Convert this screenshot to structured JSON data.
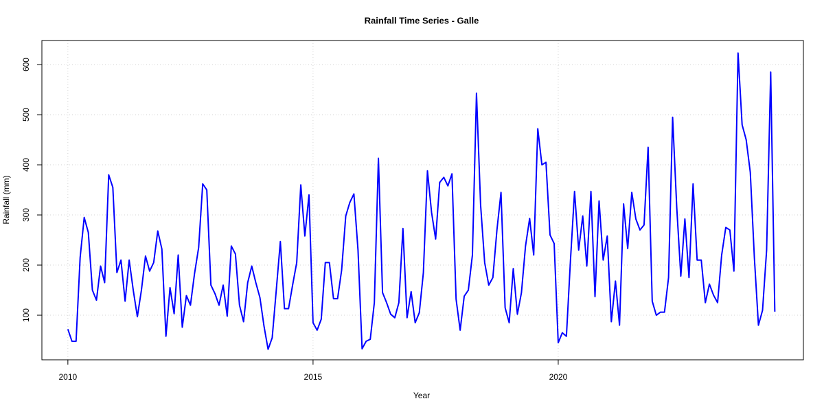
{
  "chart_data": {
    "type": "line",
    "title": "Rainfall Time Series - Galle",
    "x_label": "Year",
    "y_label": "Rainfall (mm)",
    "x": [
      2010,
      2010.083,
      2010.167,
      2010.25,
      2010.333,
      2010.417,
      2010.5,
      2010.583,
      2010.667,
      2010.75,
      2010.833,
      2010.917,
      2011,
      2011.083,
      2011.167,
      2011.25,
      2011.333,
      2011.417,
      2011.5,
      2011.583,
      2011.667,
      2011.75,
      2011.833,
      2011.917,
      2012,
      2012.083,
      2012.167,
      2012.25,
      2012.333,
      2012.417,
      2012.5,
      2012.583,
      2012.667,
      2012.75,
      2012.833,
      2012.917,
      2013,
      2013.083,
      2013.167,
      2013.25,
      2013.333,
      2013.417,
      2013.5,
      2013.583,
      2013.667,
      2013.75,
      2013.833,
      2013.917,
      2014,
      2014.083,
      2014.167,
      2014.25,
      2014.333,
      2014.417,
      2014.5,
      2014.583,
      2014.667,
      2014.75,
      2014.833,
      2014.917,
      2015,
      2015.083,
      2015.167,
      2015.25,
      2015.333,
      2015.417,
      2015.5,
      2015.583,
      2015.667,
      2015.75,
      2015.833,
      2015.917,
      2016,
      2016.083,
      2016.167,
      2016.25,
      2016.333,
      2016.417,
      2016.5,
      2016.583,
      2016.667,
      2016.75,
      2016.833,
      2016.917,
      2017,
      2017.083,
      2017.167,
      2017.25,
      2017.333,
      2017.417,
      2017.5,
      2017.583,
      2017.667,
      2017.75,
      2017.833,
      2017.917,
      2018,
      2018.083,
      2018.167,
      2018.25,
      2018.333,
      2018.417,
      2018.5,
      2018.583,
      2018.667,
      2018.75,
      2018.833,
      2018.917,
      2019,
      2019.083,
      2019.167,
      2019.25,
      2019.333,
      2019.417,
      2019.5,
      2019.583,
      2019.667,
      2019.75,
      2019.833,
      2019.917,
      2020,
      2020.083,
      2020.167,
      2020.25,
      2020.333,
      2020.417,
      2020.5,
      2020.583,
      2020.667,
      2020.75,
      2020.833,
      2020.917,
      2021,
      2021.083,
      2021.167,
      2021.25,
      2021.333,
      2021.417,
      2021.5,
      2021.583,
      2021.667,
      2021.75,
      2021.833,
      2021.917,
      2022,
      2022.083,
      2022.167,
      2022.25,
      2022.333,
      2022.417,
      2022.5,
      2022.583,
      2022.667,
      2022.75,
      2022.833,
      2022.917,
      2023,
      2023.083,
      2023.167,
      2023.25,
      2023.333,
      2023.417,
      2023.5,
      2023.583,
      2023.667,
      2023.75,
      2023.833,
      2023.917,
      2024,
      2024.083,
      2024.167,
      2024.25,
      2024.333,
      2024.417
    ],
    "values": [
      72,
      48,
      48,
      215,
      295,
      265,
      150,
      130,
      198,
      165,
      380,
      355,
      185,
      210,
      128,
      210,
      150,
      97,
      150,
      218,
      188,
      205,
      268,
      232,
      58,
      155,
      103,
      220,
      76,
      139,
      120,
      183,
      235,
      362,
      350,
      160,
      143,
      120,
      160,
      98,
      238,
      222,
      120,
      87,
      165,
      198,
      165,
      135,
      78,
      32,
      55,
      150,
      247,
      113,
      113,
      160,
      205,
      360,
      258,
      340,
      85,
      70,
      92,
      205,
      205,
      133,
      133,
      190,
      298,
      325,
      342,
      230,
      33,
      48,
      52,
      125,
      413,
      145,
      125,
      102,
      95,
      125,
      273,
      95,
      147,
      85,
      105,
      185,
      388,
      305,
      252,
      365,
      375,
      358,
      382,
      132,
      70,
      138,
      150,
      220,
      543,
      320,
      205,
      160,
      175,
      270,
      345,
      115,
      85,
      193,
      102,
      145,
      238,
      293,
      220,
      472,
      400,
      405,
      260,
      243,
      45,
      65,
      58,
      210,
      347,
      230,
      298,
      198,
      347,
      137,
      328,
      210,
      258,
      87,
      168,
      80,
      322,
      233,
      345,
      292,
      270,
      280,
      435,
      128,
      100,
      106,
      106,
      175,
      495,
      315,
      178,
      292,
      175,
      362,
      210,
      210,
      125,
      162,
      140,
      125,
      220,
      275,
      270,
      188,
      623,
      480,
      450,
      385,
      215,
      80,
      110,
      230,
      585,
      107
    ],
    "color": "#0000ff",
    "xlim": [
      2009.47,
      2025.0
    ],
    "ylim": [
      11,
      648
    ],
    "xticks": [
      2010,
      2015,
      2020
    ],
    "yticks": [
      100,
      200,
      300,
      400,
      500,
      600
    ],
    "grid": true
  }
}
